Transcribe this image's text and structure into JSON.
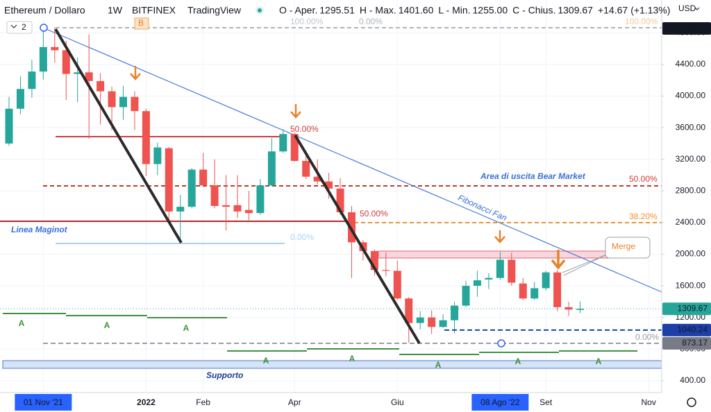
{
  "chart_data": {
    "type": "candlestick",
    "title": "Ethereum / Dollaro",
    "interval": "1W",
    "exchange": "BITFINEX",
    "brand": "TradingView",
    "ohlc_header": [
      {
        "key": "O - Aper.",
        "value": "1295.51"
      },
      {
        "key": "H - Max.",
        "value": "1401.60"
      },
      {
        "key": "L - Min.",
        "value": "1255.00"
      },
      {
        "key": "C - Chius.",
        "value": "1309.67"
      }
    ],
    "change": "+14.67",
    "change_pct": "(+1.13%)",
    "currency": "USD",
    "categories": [
      null,
      null,
      null,
      "01 Nov '21",
      null,
      null,
      null,
      null,
      null,
      null,
      null,
      null,
      "2022",
      null,
      null,
      null,
      null,
      "Feb",
      null,
      null,
      null,
      null,
      null,
      null,
      null,
      "Apr",
      null,
      null,
      null,
      null,
      null,
      null,
      null,
      null,
      "Giu",
      null,
      null,
      null,
      null,
      null,
      null,
      null,
      null,
      "08 Ago '22",
      null,
      null,
      null,
      "Set",
      null,
      null,
      null,
      null,
      null,
      null,
      null,
      null,
      "Nov"
    ],
    "up_color": "#26a69a",
    "down_color": "#ef5350",
    "open": [
      3400,
      3840,
      4090,
      4310,
      4620,
      4580,
      4280,
      4300,
      4190,
      4060,
      3860,
      3990,
      3810,
      3140,
      3340,
      2540,
      2600,
      3070,
      2870,
      2620,
      2620,
      2560,
      2520,
      2870,
      3300,
      3520,
      3180,
      2980,
      2920,
      2830,
      2530,
      2150,
      2040,
      1800,
      1790,
      1440,
      1130,
      1200,
      1080,
      1165,
      1350,
      1600,
      1680,
      1700,
      1930,
      1630,
      1440,
      1570,
      1770,
      1330,
      1295.51,
      null,
      null,
      null,
      null,
      null,
      null
    ],
    "high": [
      3990,
      4250,
      4460,
      4870,
      4870,
      4700,
      4490,
      4780,
      4290,
      4120,
      4130,
      4060,
      3840,
      3410,
      3360,
      2750,
      3090,
      3280,
      3200,
      3000,
      3000,
      2800,
      2950,
      3470,
      3580,
      3540,
      3240,
      3200,
      3030,
      2960,
      2610,
      2180,
      2060,
      2020,
      1920,
      1460,
      1280,
      1290,
      1240,
      1400,
      1660,
      1790,
      1760,
      2030,
      2020,
      1700,
      1650,
      1790,
      1800,
      1400,
      1401.6,
      null,
      null,
      null,
      null,
      null,
      null
    ],
    "low": [
      3370,
      3770,
      3980,
      4210,
      4420,
      3950,
      3920,
      3460,
      3640,
      3570,
      3700,
      3570,
      2990,
      3000,
      2420,
      2160,
      2580,
      2850,
      2580,
      2300,
      2460,
      2430,
      2500,
      2860,
      3280,
      3170,
      2950,
      2880,
      2700,
      2500,
      1700,
      1920,
      1730,
      1720,
      1420,
      880,
      1050,
      990,
      1070,
      1000,
      1330,
      1460,
      1560,
      1680,
      1600,
      1420,
      1420,
      1540,
      1280,
      1220,
      1255,
      null,
      null,
      null,
      null,
      null,
      null
    ],
    "close": [
      3840,
      4090,
      4310,
      4620,
      4580,
      4280,
      4300,
      4190,
      4060,
      3860,
      3990,
      3810,
      3140,
      3350,
      2540,
      2600,
      3070,
      2870,
      2610,
      2600,
      2540,
      2520,
      2870,
      3300,
      3520,
      3180,
      2980,
      2920,
      2830,
      2530,
      2150,
      2040,
      1800,
      1790,
      1440,
      1130,
      1200,
      1080,
      1165,
      1350,
      1600,
      1670,
      1700,
      1930,
      1640,
      1440,
      1570,
      1770,
      1330,
      1300,
      1309.67,
      null,
      null,
      null,
      null,
      null,
      null
    ],
    "ylim": [
      250,
      5215
    ],
    "yticks": [
      {
        "value": 400,
        "label": "400.00"
      },
      {
        "value": 800,
        "label": "800.00"
      },
      {
        "value": 1200,
        "label": "1200.00"
      },
      {
        "value": 1600,
        "label": "1600.00"
      },
      {
        "value": 2000,
        "label": "2000.00"
      },
      {
        "value": 2400,
        "label": "2400.00"
      },
      {
        "value": 2800,
        "label": "2800.00"
      },
      {
        "value": 3200,
        "label": "3200.00"
      },
      {
        "value": 3600,
        "label": "3600.00"
      },
      {
        "value": 4000,
        "label": "4000.00"
      },
      {
        "value": 4400,
        "label": "4400.00"
      },
      {
        "value": 4800,
        "label": "4800.00"
      }
    ],
    "grid": true,
    "price_labels": [
      {
        "value": 4855.25,
        "color": "#131722"
      },
      {
        "value": 1309.67,
        "color": "#26a69a"
      },
      {
        "value": 1040.24,
        "color": "#1e3fa8"
      },
      {
        "value": 873.17,
        "color": "#787b86"
      }
    ],
    "annotations": [
      "Linea Maginot",
      "Supporto",
      "Area di uscita Bear Market",
      "Fibonacci Fan",
      "Merge",
      "100.00%",
      "0.00%",
      "100.00%",
      "50.00%",
      "50.00%",
      "0.00%",
      "50.00%",
      "38.20%",
      "0.00%",
      "B",
      "2"
    ],
    "wave_labels": [
      "A",
      "A",
      "A",
      "A",
      "A",
      "A",
      "A",
      "A"
    ]
  }
}
